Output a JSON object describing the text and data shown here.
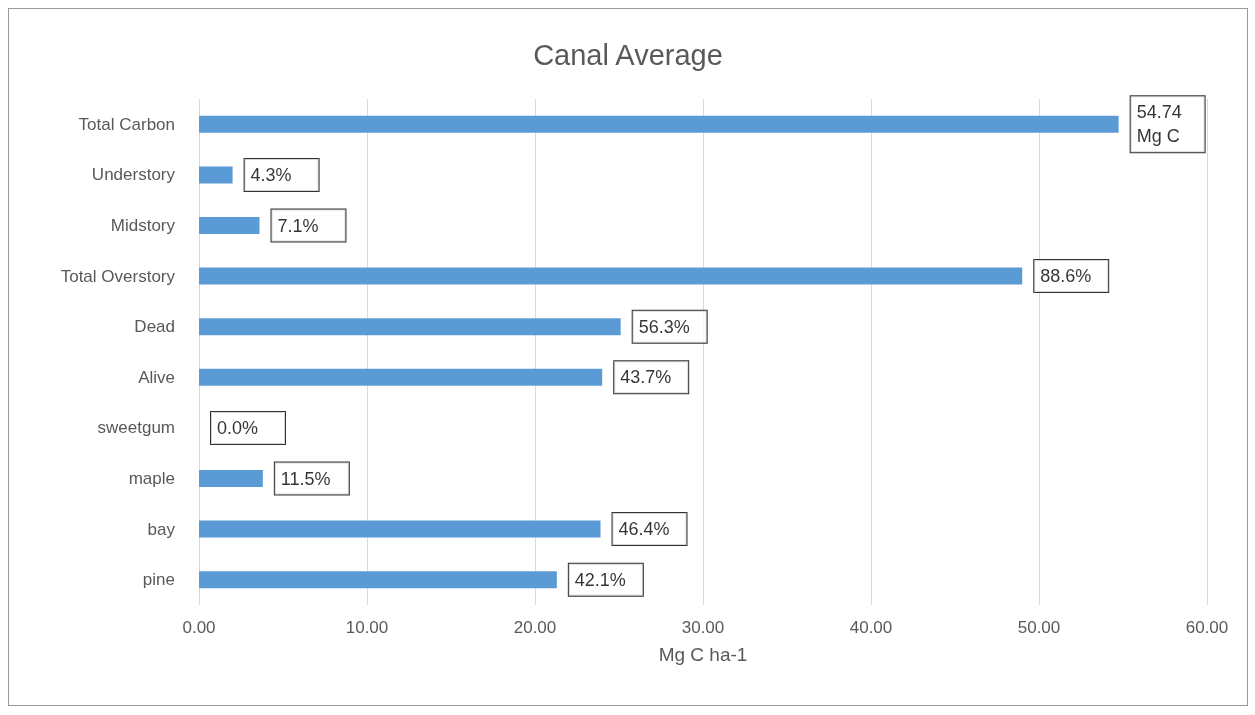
{
  "chart_data": {
    "type": "bar",
    "orientation": "horizontal",
    "title": "Canal Average",
    "xlabel": "Mg C ha-1",
    "categories": [
      "Total Carbon",
      "Understory",
      "Midstory",
      "Total Overstory",
      "Dead",
      "Alive",
      "sweetgum",
      "maple",
      "bay",
      "pine"
    ],
    "values": [
      54.74,
      2.0,
      3.6,
      49.0,
      25.1,
      24.0,
      0,
      3.8,
      23.9,
      21.3
    ],
    "annotations": [
      {
        "text": "54.74 Mg C",
        "x": 54.74,
        "y": "Total Carbon"
      },
      {
        "text": "4.3%",
        "x": 2.0,
        "y": "Understory"
      },
      {
        "text": "7.1%",
        "x": 3.6,
        "y": "Midstory"
      },
      {
        "text": "88.6%",
        "x": 49.0,
        "y": "Total Overstory"
      },
      {
        "text": "56.3%",
        "x": 25.1,
        "y": "Dead"
      },
      {
        "text": "43.7%",
        "x": 24.0,
        "y": "Alive"
      },
      {
        "text": "0.0%",
        "x": 0,
        "y": "sweetgum"
      },
      {
        "text": "11.5%",
        "x": 3.8,
        "y": "maple"
      },
      {
        "text": "46.4%",
        "x": 23.9,
        "y": "bay"
      },
      {
        "text": "42.1%",
        "x": 21.3,
        "y": "pine"
      }
    ],
    "color": "#5b9bd5",
    "xlim": [
      0,
      60
    ],
    "xticks": [
      {
        "value": 0,
        "label": "0.00"
      },
      {
        "value": 10,
        "label": "10.00"
      },
      {
        "value": 20,
        "label": "20.00"
      },
      {
        "value": 30,
        "label": "30.00"
      },
      {
        "value": 40,
        "label": "40.00"
      },
      {
        "value": 50,
        "label": "50.00"
      },
      {
        "value": 60,
        "label": "60.00"
      }
    ],
    "grid": "x"
  }
}
